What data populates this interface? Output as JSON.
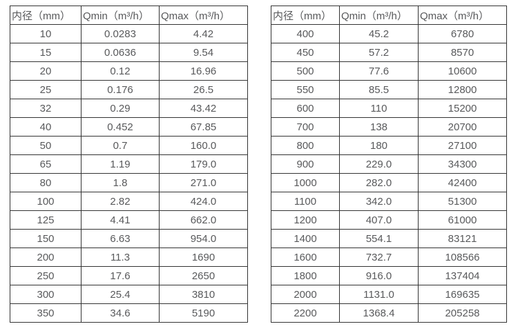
{
  "colors": {
    "background": "#ffffff",
    "text": "#58595b",
    "border": "#333333"
  },
  "tables": [
    {
      "name": "small-diameter-flow-table",
      "headers": [
        "内径（mm）",
        "Qmin（m³/h）",
        "Qmax（m³/h）"
      ],
      "rows": [
        [
          "10",
          "0.0283",
          "4.42"
        ],
        [
          "15",
          "0.0636",
          "9.54"
        ],
        [
          "20",
          "0.12",
          "16.96"
        ],
        [
          "25",
          "0.176",
          "26.5"
        ],
        [
          "32",
          "0.29",
          "43.42"
        ],
        [
          "40",
          "0.452",
          "67.85"
        ],
        [
          "50",
          "0.7",
          "160.0"
        ],
        [
          "65",
          "1.19",
          "179.0"
        ],
        [
          "80",
          "1.8",
          "271.0"
        ],
        [
          "100",
          "2.82",
          "424.0"
        ],
        [
          "125",
          "4.41",
          "662.0"
        ],
        [
          "150",
          "6.63",
          "954.0"
        ],
        [
          "200",
          "11.3",
          "1690"
        ],
        [
          "250",
          "17.6",
          "2650"
        ],
        [
          "300",
          "25.4",
          "3810"
        ],
        [
          "350",
          "34.6",
          "5190"
        ]
      ]
    },
    {
      "name": "large-diameter-flow-table",
      "headers": [
        "内径（mm）",
        "Qmin（m³/h）",
        "Qmax（m³/h）"
      ],
      "rows": [
        [
          "400",
          "45.2",
          "6780"
        ],
        [
          "450",
          "57.2",
          "8570"
        ],
        [
          "500",
          "77.6",
          "10600"
        ],
        [
          "550",
          "85.5",
          "12800"
        ],
        [
          "600",
          "110",
          "15200"
        ],
        [
          "700",
          "138",
          "20700"
        ],
        [
          "800",
          "180",
          "27100"
        ],
        [
          "900",
          "229.0",
          "34300"
        ],
        [
          "1000",
          "282.0",
          "42400"
        ],
        [
          "1100",
          "342.0",
          "51300"
        ],
        [
          "1200",
          "407.0",
          "61000"
        ],
        [
          "1400",
          "554.1",
          "83121"
        ],
        [
          "1600",
          "732.7",
          "108566"
        ],
        [
          "1800",
          "916.0",
          "137404"
        ],
        [
          "2000",
          "1131.0",
          "169635"
        ],
        [
          "2200",
          "1368.4",
          "205258"
        ]
      ]
    }
  ]
}
